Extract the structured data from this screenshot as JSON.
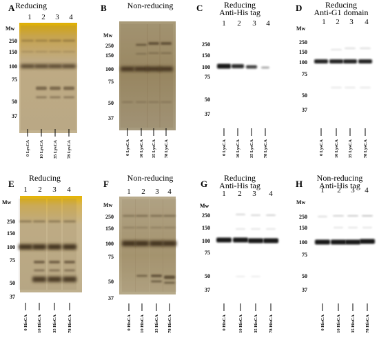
{
  "figure": {
    "panels": [
      {
        "letter": "A",
        "titles": [
          "Reducing"
        ],
        "lanes": [
          "1",
          "2",
          "3",
          "4"
        ],
        "mw_header": "Mw",
        "mw_markers": [
          "250",
          "150",
          "100",
          "75",
          "50",
          "37"
        ],
        "samples": [
          "0 LysCA",
          "10 LysCA",
          "35 LysCA",
          "78 LysCA"
        ],
        "gel_type": "silver-stain"
      },
      {
        "letter": "B",
        "titles": [
          "Non-reducing"
        ],
        "lanes": [],
        "mw_header": "Mw",
        "mw_markers": [
          "250",
          "150",
          "100",
          "75",
          "50",
          "37"
        ],
        "samples": [
          "0 LysCA",
          "10 LysCA",
          "35 LysCA",
          "78 LysCA"
        ],
        "gel_type": "silver-stain"
      },
      {
        "letter": "C",
        "titles": [
          "Reducing",
          "Anti-His tag"
        ],
        "lanes": [
          "1",
          "2",
          "3",
          "4"
        ],
        "mw_header": "",
        "mw_markers": [
          "250",
          "150",
          "100",
          "75",
          "50",
          "37"
        ],
        "samples": [
          "0 LysCA",
          "10 LysCA",
          "35 LysCA",
          "78 LysCA"
        ],
        "gel_type": "western-blot"
      },
      {
        "letter": "D",
        "titles": [
          "Reducing",
          "Anti-G1 domain"
        ],
        "lanes": [
          "1",
          "2",
          "3",
          "4"
        ],
        "mw_header": "Mw",
        "mw_markers": [
          "250",
          "150",
          "100",
          "75",
          "50",
          "37"
        ],
        "samples": [
          "0 LysCA",
          "10 LysCA",
          "35 LysCA",
          "78 LysCA"
        ],
        "gel_type": "western-blot"
      },
      {
        "letter": "E",
        "titles": [
          "Reducing"
        ],
        "lanes": [
          "1",
          "2",
          "3",
          "4"
        ],
        "mw_header": "Mw",
        "mw_markers": [
          "250",
          "150",
          "100",
          "75",
          "50",
          "37"
        ],
        "samples": [
          "0 HisCA",
          "10 HisCA",
          "35 HisCA",
          "78 HisCA"
        ],
        "gel_type": "silver-stain"
      },
      {
        "letter": "F",
        "titles": [
          "Non-reducing"
        ],
        "lanes": [
          "1",
          "2",
          "3",
          "4"
        ],
        "mw_header": "Mw",
        "mw_markers": [
          "250",
          "150",
          "100",
          "75",
          "50",
          "37"
        ],
        "samples": [
          "0 HisCA",
          "10 HisCA",
          "35 HisCA",
          "78 HisCA"
        ],
        "gel_type": "silver-stain"
      },
      {
        "letter": "G",
        "titles": [
          "Reducing",
          "Anti-His tag"
        ],
        "lanes": [
          "1",
          "2",
          "3",
          "4"
        ],
        "mw_header": "Mw",
        "mw_markers": [
          "250",
          "150",
          "100",
          "75",
          "50",
          "37"
        ],
        "samples": [
          "0 HisCA",
          "10 HisCA",
          "35 HisCA",
          "78 HisCA"
        ],
        "gel_type": "western-blot"
      },
      {
        "letter": "H",
        "titles": [
          "Non-reducing",
          "Anti-His tag"
        ],
        "lanes": [
          "1",
          "2",
          "3",
          "4"
        ],
        "mw_header": "Mw",
        "mw_markers": [
          "250",
          "150",
          "100",
          "75",
          "50",
          "37"
        ],
        "samples": [
          "0 HisCA",
          "10 HisCA",
          "35 HisCA",
          "78 HisCA"
        ],
        "gel_type": "western-blot"
      }
    ],
    "colors": {
      "silver_background": "#bfae8c",
      "silver_top": "#e3b300",
      "silver_band": "#3a2a16",
      "blot_background": "#ffffff",
      "blot_band": "#111111"
    }
  }
}
